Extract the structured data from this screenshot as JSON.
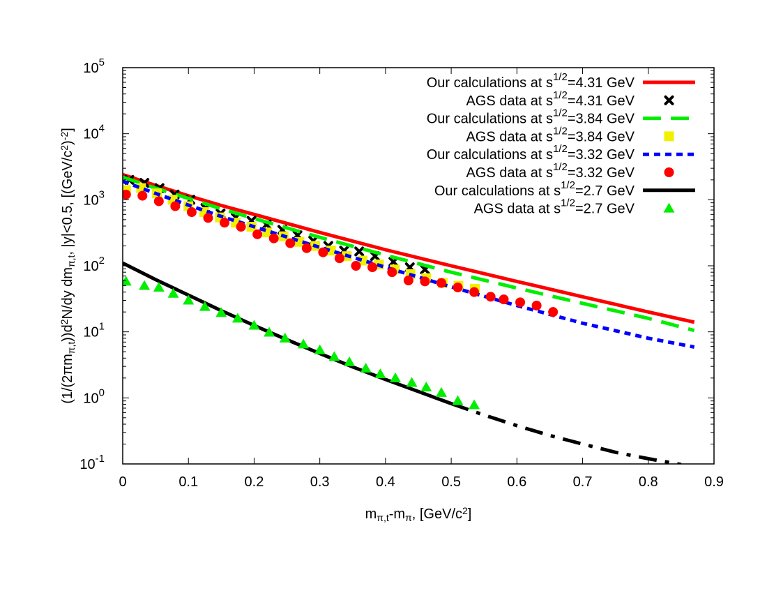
{
  "chart_data": {
    "type": "scatter",
    "title": "",
    "xlabel": "m_{π,t}-m_π, [GeV/c^2]",
    "ylabel": "(1/(2πm_{π,t}))d^2N/dy dm_{π,t}, |y|<0.5, [(GeV/c^2)^{-2}]",
    "xlim": [
      0,
      0.9
    ],
    "ylim": [
      0.1,
      100000
    ],
    "yscale": "log",
    "grid": false,
    "legend_position": "top-right",
    "x_ticks": [
      "0",
      "0.1",
      "0.2",
      "0.3",
      "0.4",
      "0.5",
      "0.6",
      "0.7",
      "0.8",
      "0.9"
    ],
    "y_ticks": [
      {
        "base": "10",
        "exp": "-1",
        "value": 0.1
      },
      {
        "base": "10",
        "exp": "0",
        "value": 1
      },
      {
        "base": "10",
        "exp": "1",
        "value": 10
      },
      {
        "base": "10",
        "exp": "2",
        "value": 100
      },
      {
        "base": "10",
        "exp": "3",
        "value": 1000
      },
      {
        "base": "10",
        "exp": "4",
        "value": 10000
      },
      {
        "base": "10",
        "exp": "5",
        "value": 100000
      }
    ],
    "series": [
      {
        "name": "Our calculations at s^{1/2}=4.31 GeV",
        "legend_prefix": "Our calculations at s",
        "legend_suffix": "=4.31 GeV",
        "kind": "line",
        "dash": "solid",
        "color": "#ff0000",
        "x": [
          0,
          0.05,
          0.1,
          0.15,
          0.2,
          0.3,
          0.4,
          0.5,
          0.6,
          0.7,
          0.8,
          0.87
        ],
        "y": [
          2400,
          1650,
          1150,
          820,
          600,
          320,
          175,
          100,
          58,
          34,
          20,
          14
        ]
      },
      {
        "name": "AGS data at s^{1/2}=4.31 GeV",
        "legend_prefix": "AGS data at s",
        "legend_suffix": "=4.31 GeV",
        "kind": "points",
        "marker": "cross",
        "color": "#000000",
        "x": [
          0.01,
          0.033,
          0.056,
          0.079,
          0.103,
          0.126,
          0.149,
          0.172,
          0.196,
          0.219,
          0.243,
          0.266,
          0.29,
          0.313,
          0.337,
          0.36,
          0.384,
          0.412,
          0.437,
          0.46
        ],
        "y": [
          2000,
          1800,
          1500,
          1200,
          1000,
          750,
          620,
          540,
          480,
          420,
          350,
          290,
          240,
          200,
          170,
          165,
          140,
          115,
          95,
          88
        ]
      },
      {
        "name": "Our calculations at s^{1/2}=3.84 GeV",
        "legend_prefix": "Our calculations at s",
        "legend_suffix": "=3.84 GeV",
        "kind": "line",
        "dash": "long",
        "color": "#00ee00",
        "x": [
          0,
          0.05,
          0.1,
          0.15,
          0.2,
          0.3,
          0.4,
          0.5,
          0.6,
          0.7,
          0.8,
          0.87
        ],
        "y": [
          2200,
          1500,
          1050,
          730,
          520,
          270,
          145,
          80,
          46,
          27,
          16,
          10.5
        ]
      },
      {
        "name": "AGS data at s^{1/2}=3.84 GeV",
        "legend_prefix": "AGS data at s",
        "legend_suffix": "=3.84 GeV",
        "kind": "points",
        "marker": "square",
        "color": "#f0f000",
        "x": [
          0.005,
          0.028,
          0.052,
          0.076,
          0.1,
          0.124,
          0.148,
          0.172,
          0.196,
          0.22,
          0.245,
          0.269,
          0.293,
          0.317,
          0.341,
          0.365,
          0.39,
          0.414,
          0.438,
          0.462,
          0.487,
          0.511,
          0.536
        ],
        "y": [
          1400,
          1500,
          1250,
          1000,
          800,
          650,
          540,
          450,
          390,
          320,
          280,
          230,
          200,
          170,
          140,
          120,
          105,
          88,
          75,
          65,
          55,
          50,
          45
        ]
      },
      {
        "name": "Our calculations at s^{1/2}=3.32 GeV",
        "legend_prefix": "Our calculations at s",
        "legend_suffix": "=3.32 GeV",
        "kind": "line",
        "dash": "short",
        "color": "#0000ff",
        "x": [
          0,
          0.05,
          0.1,
          0.15,
          0.2,
          0.3,
          0.4,
          0.5,
          0.6,
          0.7,
          0.8,
          0.87
        ],
        "y": [
          1900,
          1250,
          830,
          560,
          390,
          190,
          95,
          48,
          25,
          13.5,
          8,
          5.9
        ]
      },
      {
        "name": "AGS data at s^{1/2}=3.32 GeV",
        "legend_prefix": "AGS data at s",
        "legend_suffix": "=3.32 GeV",
        "kind": "points",
        "marker": "circle",
        "color": "#ff0000",
        "x": [
          0.005,
          0.03,
          0.055,
          0.08,
          0.105,
          0.13,
          0.155,
          0.18,
          0.205,
          0.23,
          0.255,
          0.28,
          0.305,
          0.33,
          0.355,
          0.38,
          0.41,
          0.435,
          0.46,
          0.485,
          0.51,
          0.535,
          0.56,
          0.58,
          0.605,
          0.63,
          0.655
        ],
        "y": [
          1200,
          1150,
          950,
          800,
          650,
          530,
          450,
          390,
          300,
          260,
          220,
          185,
          160,
          130,
          100,
          95,
          80,
          60,
          58,
          55,
          47,
          40,
          34,
          31,
          28,
          25,
          20
        ]
      },
      {
        "name": "Our calculations at s^{1/2}=2.7 GeV",
        "legend_prefix": "Our calculations at s",
        "legend_suffix": "=2.7 GeV",
        "kind": "line",
        "dash": "solid-then-dashdot",
        "color": "#000000",
        "x": [
          0,
          0.05,
          0.1,
          0.15,
          0.2,
          0.25,
          0.3,
          0.35,
          0.4,
          0.45,
          0.5,
          0.55,
          0.6,
          0.65,
          0.7,
          0.75,
          0.8,
          0.85
        ],
        "y": [
          110,
          62,
          36,
          21,
          12.5,
          7.6,
          4.7,
          2.95,
          1.9,
          1.25,
          0.82,
          0.55,
          0.38,
          0.27,
          0.2,
          0.15,
          0.12,
          0.098
        ]
      },
      {
        "name": "AGS data at s^{1/2}=2.7 GeV",
        "legend_prefix": "AGS data at s",
        "legend_suffix": "=2.7 GeV",
        "kind": "points",
        "marker": "triangle",
        "color": "#00ee00",
        "x": [
          0.005,
          0.033,
          0.055,
          0.077,
          0.1,
          0.125,
          0.15,
          0.175,
          0.2,
          0.223,
          0.247,
          0.275,
          0.3,
          0.322,
          0.345,
          0.37,
          0.392,
          0.415,
          0.44,
          0.462,
          0.485,
          0.51,
          0.535
        ],
        "y": [
          58,
          50,
          47,
          38,
          30,
          24,
          19.5,
          16,
          12.5,
          9.8,
          8,
          6.5,
          5.3,
          4.2,
          3.5,
          2.8,
          2.3,
          2,
          1.7,
          1.45,
          1.2,
          0.9,
          0.78
        ]
      }
    ]
  }
}
